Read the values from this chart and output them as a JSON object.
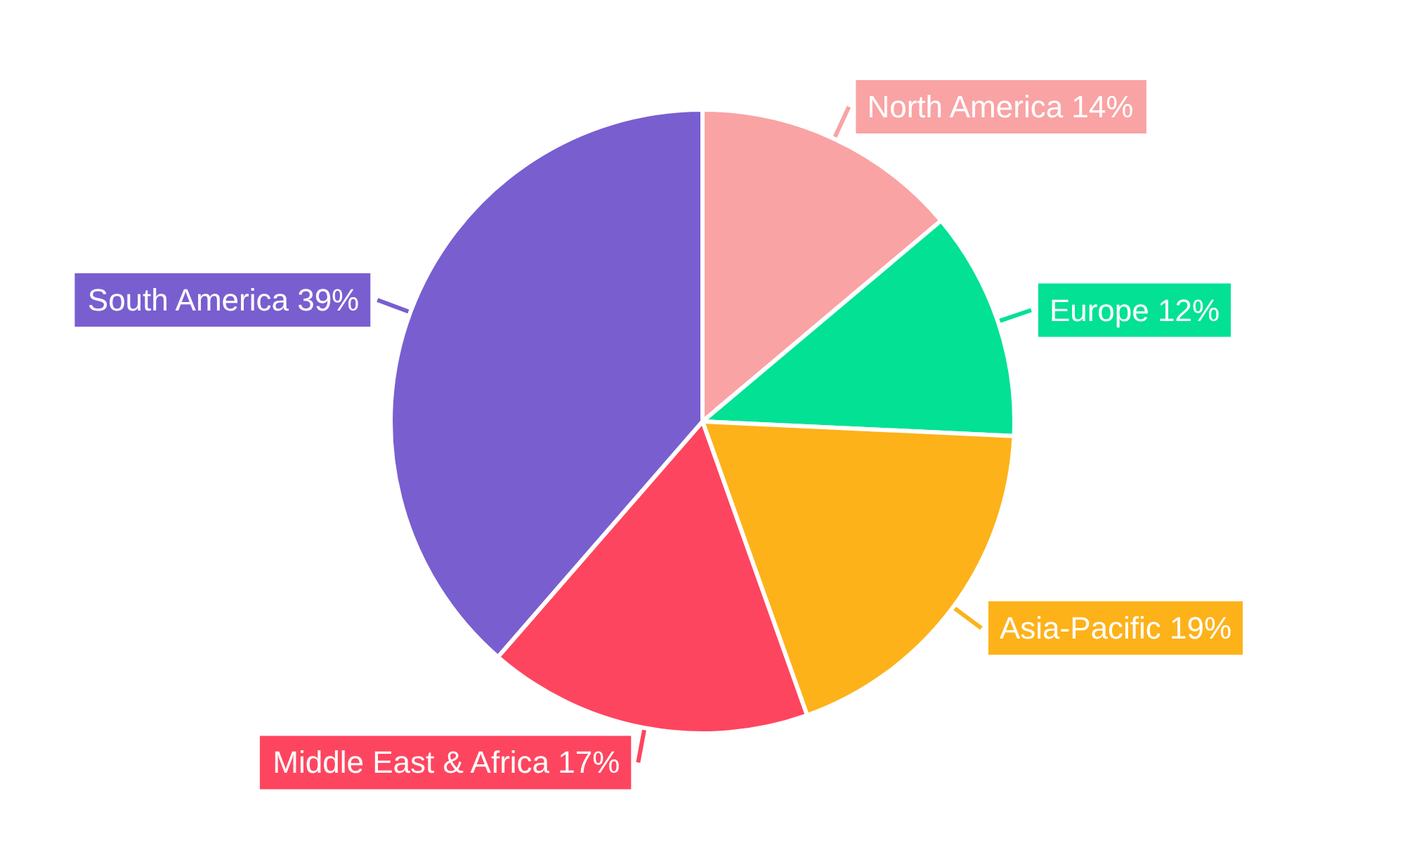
{
  "chart_data": {
    "type": "pie",
    "categories": [
      "North America",
      "Europe",
      "Asia-Pacific",
      "Middle East & Africa",
      "South America"
    ],
    "values": [
      14,
      12,
      19,
      17,
      39
    ],
    "value_labels": [
      "14%",
      "12%",
      "19%",
      "17%",
      "39%"
    ],
    "colors": [
      "#f9a3a4",
      "#02e194",
      "#fdb21a",
      "#fe455f",
      "#795ed0"
    ],
    "legend": false
  }
}
